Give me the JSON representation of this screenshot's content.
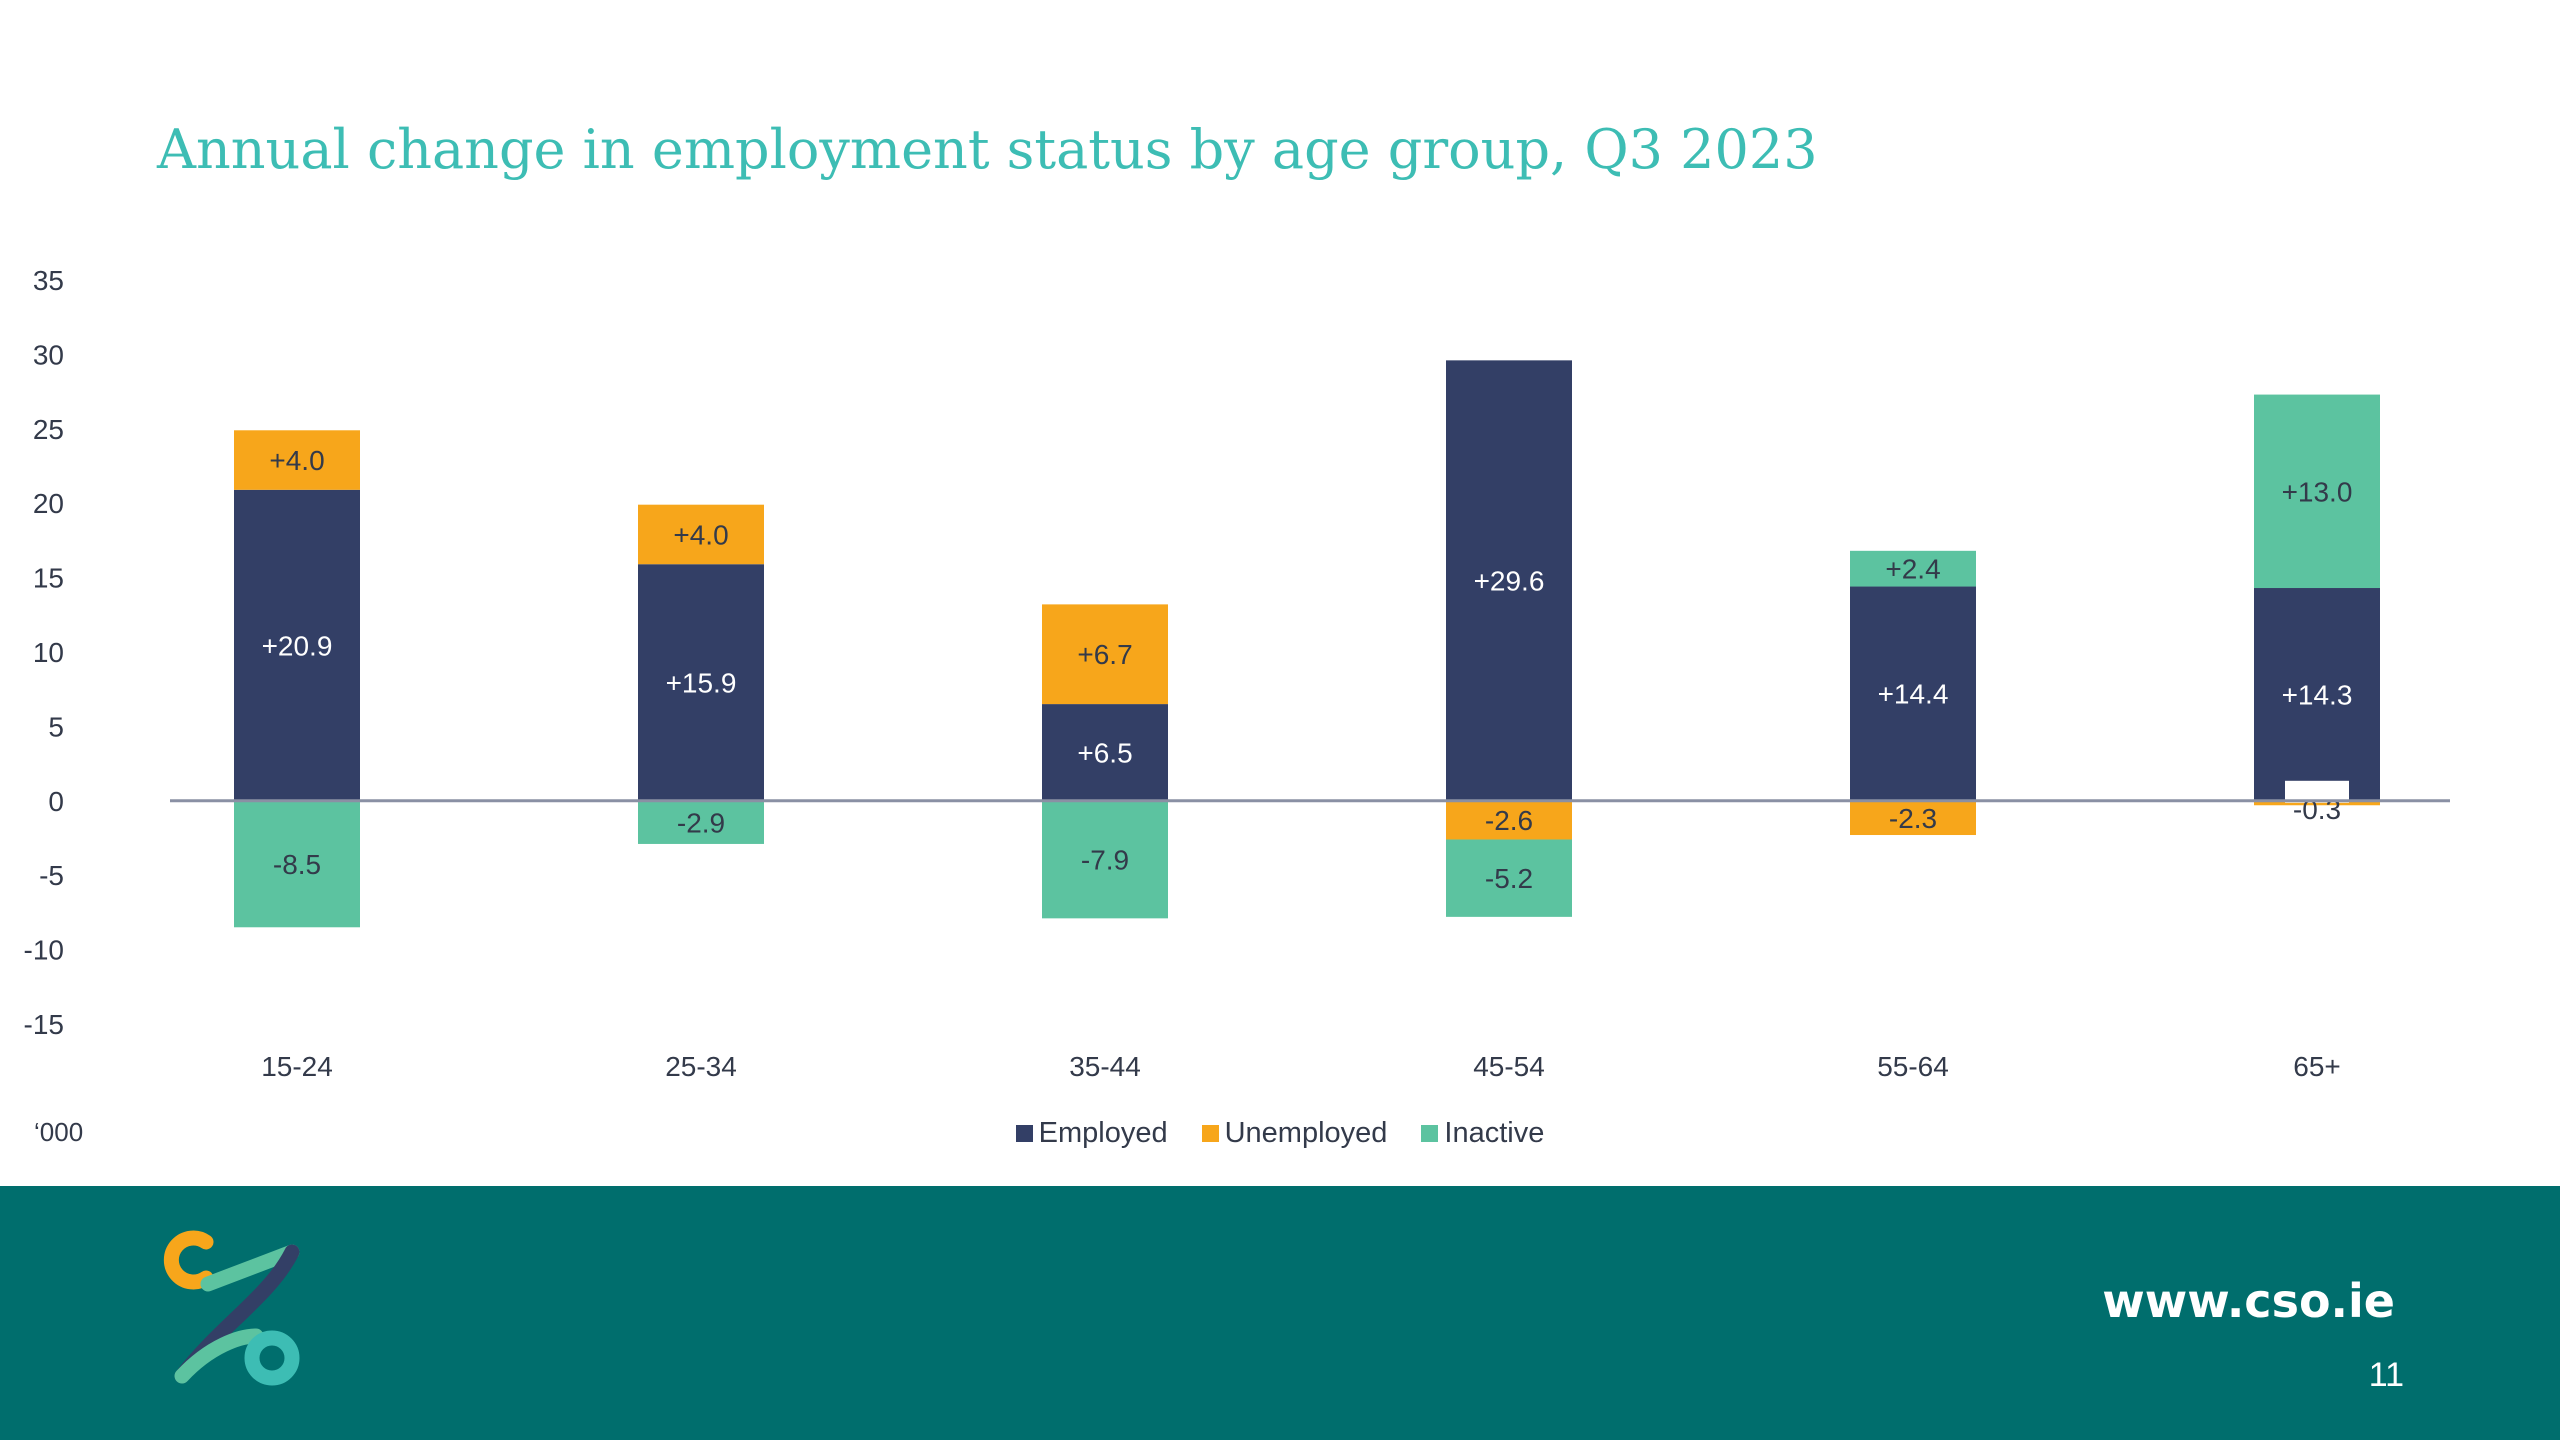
{
  "slide": {
    "title": "Annual change in employment status by age group, Q3 2023",
    "unit_note": "‘000",
    "footer_url": "www.cso.ie",
    "page_number": "11",
    "logo_icon": "cso-logo-icon"
  },
  "colors": {
    "title": "#3dbdb4",
    "footer_bg": "#006e6d",
    "employed": "#333f66",
    "unemployed": "#f7a61b",
    "inactive": "#5cc3a0",
    "axis_text": "#333a4a",
    "zero_line": "#8a90a4"
  },
  "chart_data": {
    "type": "bar",
    "stacked": true,
    "categories": [
      "15-24",
      "25-34",
      "35-44",
      "45-54",
      "55-64",
      "65+"
    ],
    "series": [
      {
        "name": "Employed",
        "values": [
          20.9,
          15.9,
          6.5,
          29.6,
          14.4,
          14.3
        ],
        "labels": [
          "+20.9",
          "+15.9",
          "+6.5",
          "+29.6",
          "+14.4",
          "+14.3"
        ]
      },
      {
        "name": "Unemployed",
        "values": [
          4.0,
          4.0,
          6.7,
          -2.6,
          -2.3,
          -0.3
        ],
        "labels": [
          "+4.0",
          "+4.0",
          "+6.7",
          "-2.6",
          "-2.3",
          "-0.3"
        ]
      },
      {
        "name": "Inactive",
        "values": [
          -8.5,
          -2.9,
          -7.9,
          -5.2,
          2.4,
          13.0
        ],
        "labels": [
          "-8.5",
          "-2.9",
          "-7.9",
          "-5.2",
          "+2.4",
          "+13.0"
        ]
      }
    ],
    "ylim": [
      -15,
      35
    ],
    "yticks": [
      35,
      30,
      25,
      20,
      15,
      10,
      5,
      0,
      -5,
      -10,
      -15
    ],
    "xlabel": "",
    "ylabel": "",
    "legend": {
      "position": "bottom",
      "entries": [
        "Employed",
        "Unemployed",
        "Inactive"
      ]
    },
    "grid": false
  }
}
